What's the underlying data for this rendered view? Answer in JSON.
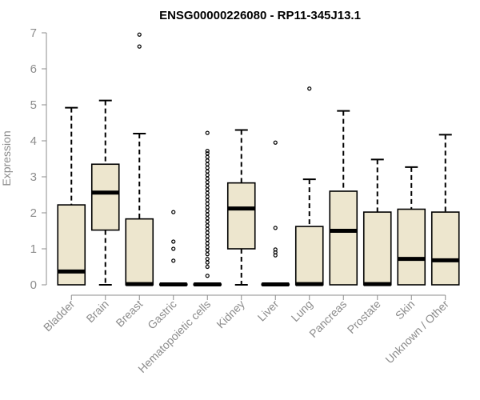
{
  "chart_data": {
    "type": "box",
    "title": "ENSG00000226080 - RP11-345J13.1",
    "ylabel": "Expression",
    "xlabel": "",
    "ylim": [
      0,
      7
    ],
    "yticks": [
      0,
      1,
      2,
      3,
      4,
      5,
      6,
      7
    ],
    "box_fill": "#ede6ce",
    "box_stroke": "#000000",
    "axis_color": "#8c8c8c",
    "categories": [
      "Bladder",
      "Brain",
      "Breast",
      "Gastric",
      "Hematopoietic cells",
      "Kidney",
      "Liver",
      "Lung",
      "Pancreas",
      "Prostate",
      "Skin",
      "Unknown / Other"
    ],
    "boxes": [
      {
        "category": "Bladder",
        "whisker_low": 0,
        "q1": 0,
        "median": 0.37,
        "q3": 2.22,
        "whisker_high": 4.92,
        "outliers": []
      },
      {
        "category": "Brain",
        "whisker_low": 0,
        "q1": 1.52,
        "median": 2.56,
        "q3": 3.35,
        "whisker_high": 5.12,
        "outliers": []
      },
      {
        "category": "Breast",
        "whisker_low": 0,
        "q1": 0,
        "median": 0.02,
        "q3": 1.83,
        "whisker_high": 4.2,
        "outliers": [
          6.62,
          6.95
        ]
      },
      {
        "category": "Gastric",
        "whisker_low": 0,
        "q1": 0,
        "median": 0.01,
        "q3": 0.02,
        "whisker_high": 0.02,
        "outliers": [
          0.67,
          1.0,
          1.2,
          2.02
        ]
      },
      {
        "category": "Hematopoietic cells",
        "whisker_low": 0,
        "q1": 0,
        "median": 0.01,
        "q3": 0.02,
        "whisker_high": 0.02,
        "outliers": [
          0.25,
          0.5,
          0.62,
          0.72,
          0.85,
          0.95,
          1.05,
          1.15,
          1.25,
          1.35,
          1.45,
          1.55,
          1.65,
          1.75,
          1.85,
          1.95,
          2.05,
          2.15,
          2.25,
          2.35,
          2.45,
          2.55,
          2.65,
          2.75,
          2.85,
          2.95,
          3.05,
          3.15,
          3.25,
          3.35,
          3.45,
          3.55,
          3.65,
          3.72,
          4.22
        ]
      },
      {
        "category": "Kidney",
        "whisker_low": 0,
        "q1": 1.0,
        "median": 2.12,
        "q3": 2.83,
        "whisker_high": 4.3,
        "outliers": []
      },
      {
        "category": "Liver",
        "whisker_low": 0,
        "q1": 0,
        "median": 0.01,
        "q3": 0.02,
        "whisker_high": 0.02,
        "outliers": [
          0.82,
          0.9,
          0.98,
          1.58,
          3.95
        ]
      },
      {
        "category": "Lung",
        "whisker_low": 0,
        "q1": 0,
        "median": 0.02,
        "q3": 1.62,
        "whisker_high": 2.93,
        "outliers": [
          5.45
        ]
      },
      {
        "category": "Pancreas",
        "whisker_low": 0,
        "q1": 0,
        "median": 1.5,
        "q3": 2.6,
        "whisker_high": 4.83,
        "outliers": []
      },
      {
        "category": "Prostate",
        "whisker_low": 0,
        "q1": 0,
        "median": 0.02,
        "q3": 2.02,
        "whisker_high": 3.48,
        "outliers": []
      },
      {
        "category": "Skin",
        "whisker_low": 0,
        "q1": 0,
        "median": 0.72,
        "q3": 2.1,
        "whisker_high": 3.27,
        "outliers": []
      },
      {
        "category": "Unknown / Other",
        "whisker_low": 0,
        "q1": 0,
        "median": 0.68,
        "q3": 2.02,
        "whisker_high": 4.17,
        "outliers": []
      }
    ]
  }
}
